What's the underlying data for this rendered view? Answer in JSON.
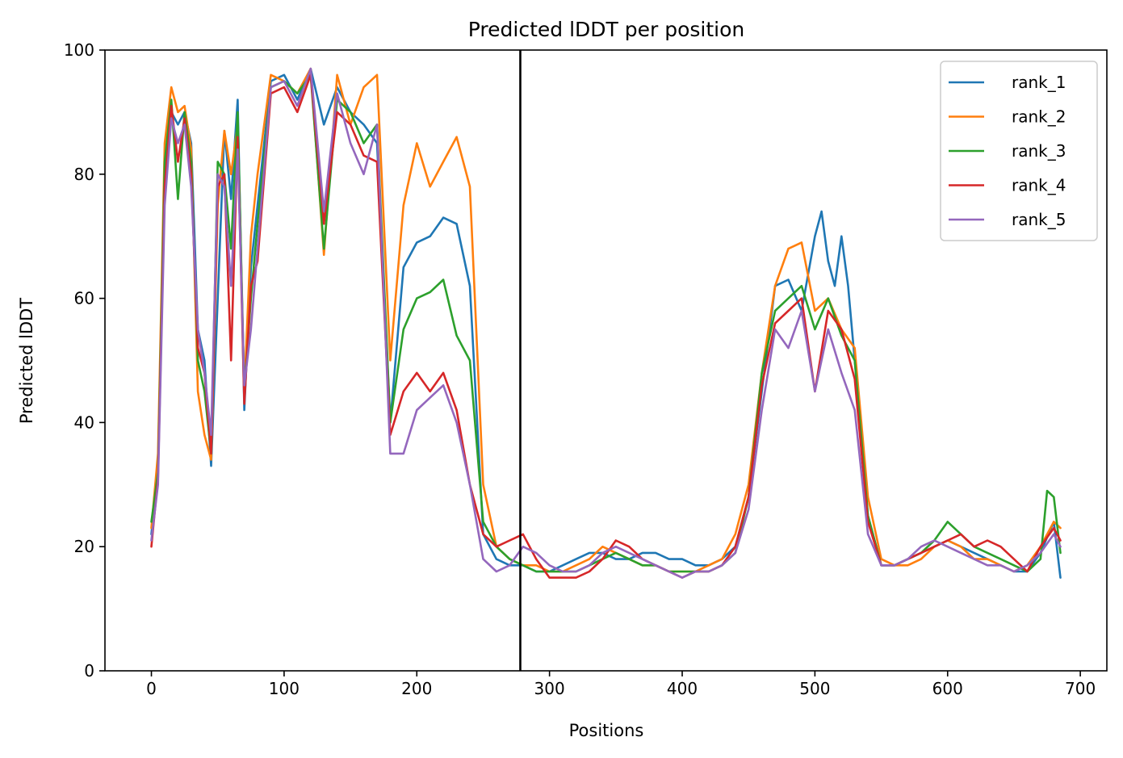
{
  "chart_data": {
    "type": "line",
    "title": "Predicted lDDT per position",
    "xlabel": "Positions",
    "ylabel": "Predicted lDDT",
    "xlim": [
      -35,
      720
    ],
    "ylim": [
      0,
      100
    ],
    "xticks": [
      0,
      100,
      200,
      300,
      400,
      500,
      600,
      700
    ],
    "yticks": [
      0,
      20,
      40,
      60,
      80,
      100
    ],
    "vline_x": 278,
    "legend_position": "top-right",
    "grid": false,
    "series": [
      {
        "name": "rank_1",
        "color": "#1f77b4",
        "x": [
          0,
          5,
          10,
          15,
          20,
          25,
          30,
          35,
          40,
          45,
          50,
          55,
          60,
          65,
          70,
          75,
          80,
          90,
          100,
          110,
          120,
          130,
          140,
          150,
          160,
          170,
          180,
          190,
          200,
          210,
          220,
          230,
          240,
          250,
          260,
          270,
          280,
          290,
          300,
          310,
          320,
          330,
          340,
          350,
          360,
          370,
          380,
          390,
          400,
          410,
          420,
          430,
          440,
          450,
          460,
          470,
          480,
          490,
          500,
          505,
          510,
          515,
          520,
          525,
          530,
          540,
          550,
          560,
          570,
          580,
          590,
          600,
          610,
          620,
          630,
          640,
          650,
          660,
          670,
          680,
          685
        ],
        "y": [
          22,
          33,
          80,
          90,
          88,
          90,
          85,
          55,
          50,
          33,
          60,
          87,
          76,
          92,
          42,
          65,
          75,
          95,
          96,
          92,
          97,
          88,
          94,
          90,
          88,
          85,
          40,
          65,
          69,
          70,
          73,
          72,
          62,
          22,
          18,
          17,
          17,
          16,
          16,
          17,
          18,
          19,
          19,
          18,
          18,
          19,
          19,
          18,
          18,
          17,
          17,
          18,
          20,
          28,
          45,
          62,
          63,
          58,
          70,
          74,
          66,
          62,
          70,
          62,
          50,
          25,
          17,
          17,
          18,
          19,
          20,
          21,
          20,
          19,
          18,
          17,
          16,
          16,
          19,
          24,
          15
        ]
      },
      {
        "name": "rank_2",
        "color": "#ff7f0e",
        "x": [
          0,
          5,
          10,
          15,
          20,
          25,
          30,
          35,
          40,
          45,
          50,
          55,
          60,
          65,
          70,
          75,
          80,
          90,
          100,
          110,
          120,
          130,
          140,
          150,
          160,
          170,
          180,
          190,
          200,
          210,
          220,
          230,
          240,
          250,
          260,
          270,
          280,
          290,
          300,
          310,
          320,
          330,
          340,
          350,
          360,
          370,
          380,
          390,
          400,
          410,
          420,
          430,
          440,
          450,
          460,
          470,
          480,
          490,
          500,
          510,
          520,
          530,
          540,
          550,
          560,
          570,
          580,
          590,
          600,
          610,
          620,
          630,
          640,
          650,
          660,
          670,
          680,
          685
        ],
        "y": [
          23,
          35,
          85,
          94,
          90,
          91,
          84,
          45,
          38,
          34,
          75,
          87,
          80,
          88,
          45,
          70,
          80,
          96,
          95,
          93,
          97,
          67,
          96,
          88,
          94,
          96,
          50,
          75,
          85,
          78,
          82,
          86,
          78,
          30,
          20,
          18,
          17,
          17,
          16,
          16,
          17,
          18,
          20,
          19,
          18,
          17,
          17,
          16,
          16,
          16,
          17,
          18,
          22,
          30,
          48,
          62,
          68,
          69,
          58,
          60,
          55,
          52,
          28,
          18,
          17,
          17,
          18,
          20,
          21,
          20,
          18,
          18,
          17,
          16,
          17,
          20,
          24,
          23
        ]
      },
      {
        "name": "rank_3",
        "color": "#2ca02c",
        "x": [
          0,
          5,
          10,
          15,
          20,
          25,
          30,
          35,
          40,
          45,
          50,
          55,
          60,
          65,
          70,
          75,
          80,
          90,
          100,
          110,
          120,
          130,
          140,
          150,
          160,
          170,
          180,
          190,
          200,
          210,
          220,
          230,
          240,
          250,
          260,
          270,
          280,
          290,
          300,
          310,
          320,
          330,
          340,
          350,
          360,
          370,
          380,
          390,
          400,
          410,
          420,
          430,
          440,
          450,
          460,
          470,
          480,
          490,
          500,
          510,
          520,
          530,
          540,
          550,
          560,
          570,
          580,
          590,
          600,
          610,
          620,
          630,
          640,
          650,
          660,
          670,
          675,
          680,
          685
        ],
        "y": [
          24,
          32,
          82,
          92,
          76,
          90,
          82,
          50,
          45,
          35,
          82,
          80,
          68,
          90,
          45,
          60,
          72,
          94,
          95,
          93,
          96,
          68,
          92,
          90,
          85,
          88,
          40,
          55,
          60,
          61,
          63,
          54,
          50,
          24,
          20,
          18,
          17,
          16,
          16,
          16,
          16,
          17,
          18,
          19,
          18,
          17,
          17,
          16,
          16,
          16,
          16,
          17,
          19,
          28,
          48,
          58,
          60,
          62,
          55,
          60,
          54,
          50,
          25,
          17,
          17,
          18,
          19,
          21,
          24,
          22,
          20,
          19,
          18,
          17,
          16,
          18,
          29,
          28,
          19
        ]
      },
      {
        "name": "rank_4",
        "color": "#d62728",
        "x": [
          0,
          5,
          10,
          15,
          20,
          25,
          30,
          35,
          40,
          45,
          50,
          55,
          60,
          65,
          70,
          75,
          80,
          90,
          100,
          110,
          120,
          130,
          140,
          150,
          160,
          170,
          180,
          190,
          200,
          210,
          220,
          230,
          240,
          250,
          260,
          270,
          280,
          290,
          300,
          310,
          320,
          330,
          340,
          350,
          360,
          370,
          380,
          390,
          400,
          410,
          420,
          430,
          440,
          450,
          460,
          470,
          480,
          490,
          500,
          510,
          520,
          530,
          540,
          550,
          560,
          570,
          580,
          590,
          600,
          610,
          620,
          630,
          640,
          650,
          660,
          670,
          680,
          685
        ],
        "y": [
          20,
          31,
          78,
          91,
          82,
          89,
          80,
          52,
          48,
          35,
          78,
          80,
          50,
          86,
          43,
          62,
          66,
          93,
          94,
          90,
          96,
          72,
          90,
          88,
          83,
          82,
          38,
          45,
          48,
          45,
          48,
          42,
          30,
          22,
          20,
          21,
          22,
          18,
          15,
          15,
          15,
          16,
          18,
          21,
          20,
          18,
          17,
          16,
          15,
          16,
          16,
          17,
          20,
          28,
          46,
          56,
          58,
          60,
          45,
          58,
          55,
          47,
          24,
          17,
          17,
          18,
          19,
          20,
          21,
          22,
          20,
          21,
          20,
          18,
          16,
          20,
          23,
          21
        ]
      },
      {
        "name": "rank_5",
        "color": "#9467bd",
        "x": [
          0,
          5,
          10,
          15,
          20,
          25,
          30,
          35,
          40,
          45,
          50,
          55,
          60,
          65,
          70,
          75,
          80,
          90,
          100,
          110,
          120,
          130,
          140,
          150,
          160,
          170,
          180,
          190,
          200,
          210,
          220,
          230,
          240,
          250,
          260,
          270,
          280,
          290,
          300,
          310,
          320,
          330,
          340,
          350,
          360,
          370,
          380,
          390,
          400,
          410,
          420,
          430,
          440,
          450,
          460,
          470,
          480,
          490,
          500,
          510,
          520,
          530,
          540,
          550,
          560,
          570,
          580,
          590,
          600,
          610,
          620,
          630,
          640,
          650,
          660,
          670,
          680,
          685
        ],
        "y": [
          21,
          30,
          75,
          89,
          85,
          88,
          78,
          55,
          48,
          38,
          80,
          78,
          62,
          84,
          46,
          55,
          68,
          94,
          95,
          91,
          97,
          74,
          93,
          85,
          80,
          88,
          35,
          35,
          42,
          44,
          46,
          40,
          30,
          18,
          16,
          17,
          20,
          19,
          17,
          16,
          16,
          17,
          19,
          20,
          19,
          18,
          17,
          16,
          15,
          16,
          16,
          17,
          19,
          26,
          42,
          55,
          52,
          58,
          45,
          55,
          48,
          42,
          22,
          17,
          17,
          18,
          20,
          21,
          20,
          19,
          18,
          17,
          17,
          16,
          17,
          19,
          22,
          20
        ]
      }
    ]
  }
}
